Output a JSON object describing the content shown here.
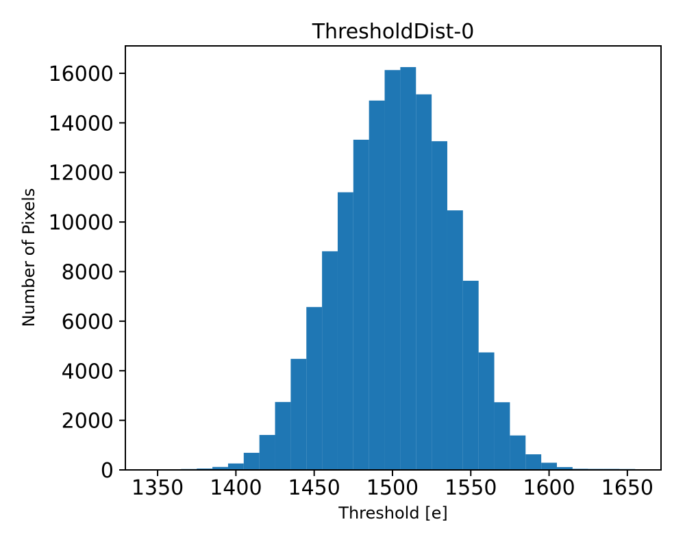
{
  "figure": {
    "background": "#ffffff"
  },
  "chart_data": {
    "type": "bar",
    "subtype": "histogram",
    "title": "ThresholdDist-0",
    "xlabel": "Threshold [e]",
    "ylabel": "Number of Pixels",
    "bar_color": "#1f77b4",
    "axis_color": "#000000",
    "grid": false,
    "legend_position": "none",
    "xlim": [
      1329.4,
      1671.5
    ],
    "ylim": [
      0,
      17105
    ],
    "x_ticks": [
      1350,
      1400,
      1450,
      1500,
      1550,
      1600,
      1650
    ],
    "y_ticks": [
      0,
      2000,
      4000,
      6000,
      8000,
      10000,
      12000,
      14000,
      16000
    ],
    "bin_width": 10,
    "bin_edges": [
      1355,
      1365,
      1375,
      1385,
      1395,
      1405,
      1415,
      1425,
      1435,
      1445,
      1455,
      1465,
      1475,
      1485,
      1495,
      1505,
      1515,
      1525,
      1535,
      1545,
      1555,
      1565,
      1575,
      1585,
      1595,
      1605,
      1615,
      1625,
      1635,
      1645,
      1655
    ],
    "counts": [
      25,
      35,
      55,
      120,
      260,
      690,
      1410,
      2740,
      4480,
      6570,
      8820,
      11200,
      13320,
      14900,
      16130,
      16250,
      15150,
      13260,
      10470,
      7630,
      4740,
      2730,
      1390,
      630,
      290,
      115,
      45,
      40,
      40,
      35
    ]
  }
}
